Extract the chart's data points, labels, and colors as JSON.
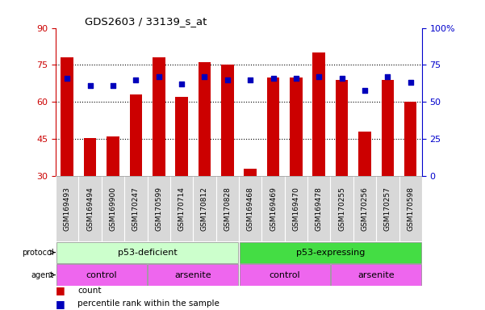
{
  "title": "GDS2603 / 33139_s_at",
  "samples": [
    "GSM169493",
    "GSM169494",
    "GSM169900",
    "GSM170247",
    "GSM170599",
    "GSM170714",
    "GSM170812",
    "GSM170828",
    "GSM169468",
    "GSM169469",
    "GSM169470",
    "GSM169478",
    "GSM170255",
    "GSM170256",
    "GSM170257",
    "GSM170598"
  ],
  "counts": [
    78,
    45.5,
    46,
    63,
    78,
    62,
    76,
    75,
    33,
    70,
    70,
    80,
    69,
    48,
    69,
    60
  ],
  "percentile": [
    66,
    61,
    61,
    65,
    67,
    62,
    67,
    65,
    65,
    66,
    66,
    67,
    66,
    58,
    67,
    63
  ],
  "ylim_left": [
    30,
    90
  ],
  "ylim_right": [
    0,
    100
  ],
  "yticks_left": [
    30,
    45,
    60,
    75,
    90
  ],
  "yticks_right": [
    0,
    25,
    50,
    75,
    100
  ],
  "ytick_labels_right": [
    "0",
    "25",
    "50",
    "75",
    "100%"
  ],
  "bar_color": "#cc0000",
  "dot_color": "#0000bb",
  "main_bg": "#ffffff",
  "label_bg": "#d8d8d8",
  "protocol_color_light": "#ccffcc",
  "protocol_color_dark": "#44dd44",
  "agent_color": "#ee66ee",
  "protocol_labels": [
    "p53-deficient",
    "p53-expressing"
  ],
  "agent_labels": [
    "control",
    "arsenite",
    "control",
    "arsenite"
  ],
  "left_axis_color": "#cc0000",
  "right_axis_color": "#0000cc",
  "legend_count_color": "#cc0000",
  "legend_pct_color": "#0000bb"
}
